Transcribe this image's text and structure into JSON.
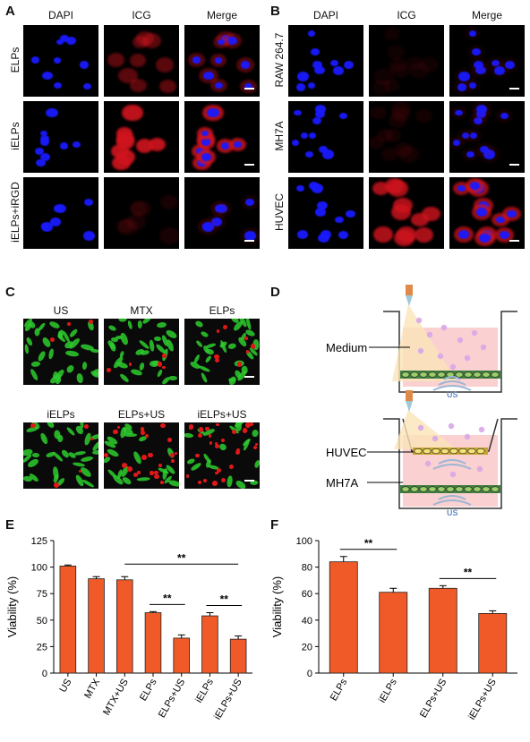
{
  "panels": {
    "A": {
      "label": "A",
      "columns": [
        "DAPI",
        "ICG",
        "Merge"
      ],
      "rows": [
        "ELPs",
        "iELPs",
        "iELPs+iRGD"
      ],
      "icg_intensity": [
        0.45,
        0.95,
        0.12
      ]
    },
    "B": {
      "label": "B",
      "columns": [
        "DAPI",
        "ICG",
        "Merge"
      ],
      "rows": [
        "RAW 264.7",
        "MH7A",
        "HUVEC"
      ],
      "icg_intensity": [
        0.08,
        0.1,
        0.85
      ]
    },
    "C": {
      "label": "C",
      "top_labels": [
        "US",
        "MTX",
        "ELPs"
      ],
      "bottom_labels": [
        "iELPs",
        "ELPs+US",
        "iELPs+US"
      ],
      "dead_fraction": [
        0.04,
        0.07,
        0.12,
        0.06,
        0.35,
        0.45
      ]
    },
    "D": {
      "label": "D",
      "medium_label": "Medium",
      "huvec_label": "HUVEC",
      "mh7a_label": "MH7A",
      "us_label": "US"
    },
    "E": {
      "label": "E",
      "sig": [
        "**",
        "**",
        "**"
      ]
    },
    "F": {
      "label": "F",
      "sig": [
        "**",
        "**"
      ]
    }
  },
  "colors": {
    "bar": "#f05a28",
    "dapi": "#1a1aff",
    "icg": "#d0141e",
    "live": "#2ecc2e",
    "dead": "#e01818"
  },
  "chart_data": [
    {
      "type": "bar",
      "panel": "E",
      "categories": [
        "US",
        "MTX",
        "MTX+US",
        "ELPs",
        "ELPs+US",
        "iELPs",
        "iELPs+US"
      ],
      "values": [
        101,
        89,
        88,
        57,
        33,
        54,
        32
      ],
      "errors": [
        1,
        2,
        3,
        1,
        3,
        3,
        3
      ],
      "ylabel": "Viability (%)",
      "ylim": [
        0,
        125
      ],
      "yticks": [
        0,
        25,
        50,
        75,
        100,
        125
      ],
      "significance": [
        {
          "from": "MTX+US",
          "to": "iELPs+US",
          "label": "**"
        },
        {
          "from": "ELPs",
          "to": "ELPs+US",
          "label": "**"
        },
        {
          "from": "iELPs",
          "to": "iELPs+US",
          "label": "**"
        }
      ]
    },
    {
      "type": "bar",
      "panel": "F",
      "categories": [
        "ELPs",
        "iELPs",
        "ELPs+US",
        "iELPs+US"
      ],
      "values": [
        84,
        61,
        64,
        45
      ],
      "errors": [
        4,
        3,
        2,
        2
      ],
      "ylabel": "Viability (%)",
      "ylim": [
        0,
        100
      ],
      "yticks": [
        0,
        20,
        40,
        60,
        80,
        100
      ],
      "significance": [
        {
          "from": "ELPs",
          "to": "iELPs",
          "label": "**"
        },
        {
          "from": "ELPs+US",
          "to": "iELPs+US",
          "label": "**"
        }
      ]
    }
  ]
}
